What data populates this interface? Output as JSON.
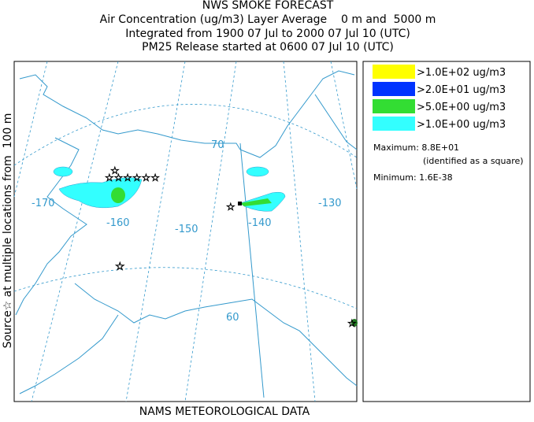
{
  "header": {
    "title": "NWS SMOKE FORECAST",
    "lines": [
      "Air Concentration (ug/m3) Layer Average    0 m and  5000 m",
      "Integrated from 1900 07 Jul to 2000 07 Jul 10 (UTC)",
      "PM25 Release started at 0600 07 Jul 10 (UTC)"
    ]
  },
  "source_label": "Source☆ at multiple locations from  100 m",
  "footer": "NAMS METEOROLOGICAL DATA",
  "legend": {
    "items": [
      {
        "label": ">1.0E+02 ug/m3",
        "color": "#ffff00"
      },
      {
        "label": ">2.0E+01 ug/m3",
        "color": "#0033ff"
      },
      {
        "label": ">5.0E+00 ug/m3",
        "color": "#33dd33"
      },
      {
        "label": ">1.0E+00 ug/m3",
        "color": "#33ffff"
      }
    ],
    "maximum": "Maximum: 8.8E+01",
    "maximum_note": "(identified as a square)",
    "minimum": "Minimum: 1.6E-38"
  },
  "map": {
    "labels": [
      "-170",
      "-160",
      "-150",
      "-140",
      "-130",
      "70",
      "60"
    ]
  }
}
